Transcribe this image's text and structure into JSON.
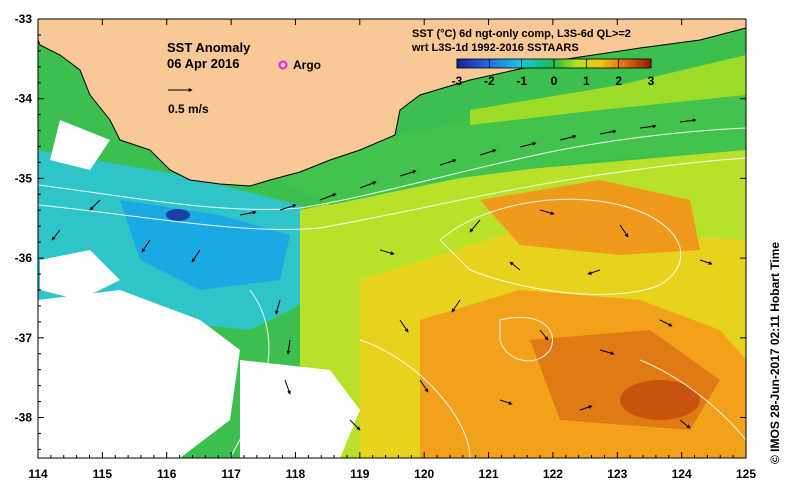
{
  "map": {
    "title": "SST Anomaly",
    "date": "06 Apr 2016",
    "legend_argo": "Argo",
    "scale_label": "0.5 m/s",
    "product_line1": "SST (°C) 6d ngt-only comp, L3S-6d QL>=2",
    "product_line2": "wrt L3S-1d 1992-2016 SSTAARS",
    "credit": "© IMOS 28-Jun-2017 02:11 Hobart Time",
    "colorbar": {
      "ticks": [
        "-3",
        "-2",
        "-1",
        "0",
        "1",
        "2",
        "3"
      ],
      "colors": [
        "#1a1f9a",
        "#1f6fe0",
        "#16c8e0",
        "#22b84a",
        "#b8e61e",
        "#f3c018",
        "#e36a12",
        "#8e1a06"
      ]
    },
    "x_ticks": [
      "114",
      "115",
      "116",
      "117",
      "118",
      "119",
      "120",
      "121",
      "122",
      "123",
      "124",
      "125"
    ],
    "y_ticks": [
      "-33",
      "-34",
      "-35",
      "-36",
      "-37",
      "-38"
    ],
    "land_color": "#f8c896",
    "argo_color": "#e21ee6"
  }
}
